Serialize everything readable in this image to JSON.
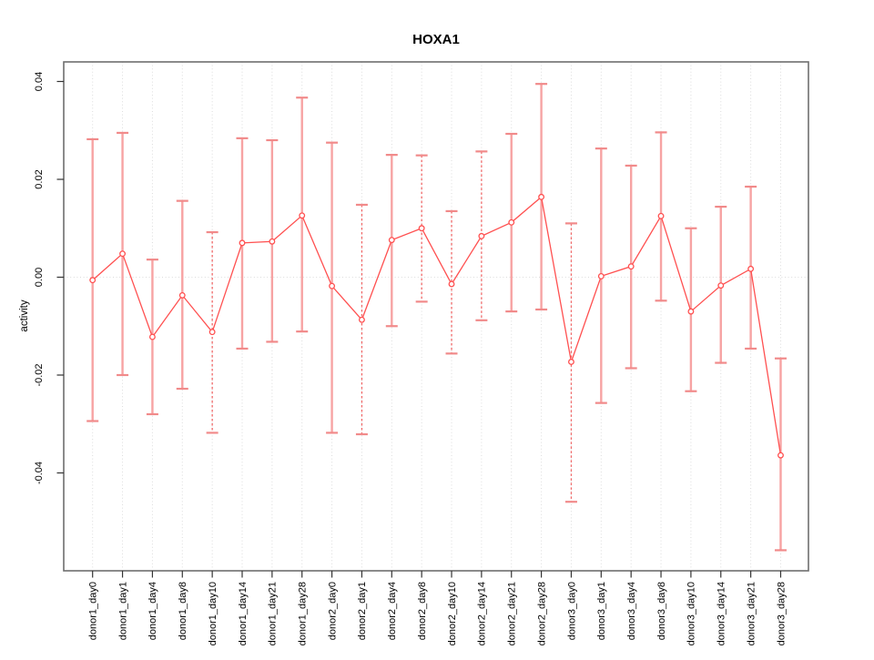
{
  "chart_data": {
    "type": "line",
    "title": "HOXA1",
    "xlabel": "",
    "ylabel": "activity",
    "categories": [
      "donor1_day0",
      "donor1_day1",
      "donor1_day4",
      "donor1_day8",
      "donor1_day10",
      "donor1_day14",
      "donor1_day21",
      "donor1_day28",
      "donor2_day0",
      "donor2_day1",
      "donor2_day4",
      "donor2_day8",
      "donor2_day10",
      "donor2_day14",
      "donor2_day21",
      "donor2_day28",
      "donor3_day0",
      "donor3_day1",
      "donor3_day4",
      "donor3_day8",
      "donor3_day10",
      "donor3_day14",
      "donor3_day21",
      "donor3_day28"
    ],
    "series": [
      {
        "name": "activity",
        "values": [
          -0.0006,
          0.0048,
          -0.0122,
          -0.0037,
          -0.0112,
          0.007,
          0.0073,
          0.0126,
          -0.0018,
          -0.0087,
          0.0076,
          0.01,
          -0.0014,
          0.0084,
          0.0112,
          0.0164,
          -0.0173,
          0.0002,
          0.0022,
          0.0125,
          -0.007,
          -0.0017,
          0.0017,
          -0.0364
        ],
        "lower": [
          -0.0294,
          -0.02,
          -0.028,
          -0.0228,
          -0.0318,
          -0.0146,
          -0.0132,
          -0.0111,
          -0.0318,
          -0.0321,
          -0.01,
          -0.005,
          -0.0156,
          -0.0088,
          -0.007,
          -0.0066,
          -0.0459,
          -0.0257,
          -0.0186,
          -0.0048,
          -0.0233,
          -0.0175,
          -0.0146,
          -0.0558
        ],
        "upper": [
          0.0282,
          0.0295,
          0.0036,
          0.0156,
          0.0092,
          0.0284,
          0.028,
          0.0367,
          0.0275,
          0.0148,
          0.025,
          0.0249,
          0.0135,
          0.0257,
          0.0293,
          0.0395,
          0.011,
          0.0263,
          0.0228,
          0.0296,
          0.01,
          0.0144,
          0.0185,
          -0.0166
        ],
        "error_bar_style": [
          "solid",
          "solid",
          "solid",
          "solid",
          "dashed",
          "solid",
          "solid",
          "solid",
          "solid",
          "dashed",
          "solid",
          "dashed",
          "dashed",
          "dashed",
          "solid",
          "solid",
          "dashed",
          "solid",
          "solid",
          "solid",
          "solid",
          "solid",
          "solid",
          "solid"
        ]
      }
    ],
    "yticks": [
      0.04,
      0.02,
      0.0,
      -0.02,
      -0.04
    ],
    "ytick_labels": [
      "0.04",
      "0.02",
      "0.00",
      "-0.02",
      "-0.04"
    ],
    "ylim": [
      -0.06,
      0.044
    ],
    "grid": "dotted vertical gridline at each category; dotted horizontal line at y=0",
    "legend": "none",
    "point_marker": "open-circle",
    "colors": {
      "point_line": "#FF5050",
      "error_bar_solid": "#F7A3A3",
      "error_bar_cap": "#F18A8A",
      "error_bar_dashed": "#F06868",
      "grid": "#DCDCDC",
      "box": "#6E6E6E",
      "tick": "#333333",
      "background": "#FFFFFF"
    }
  }
}
